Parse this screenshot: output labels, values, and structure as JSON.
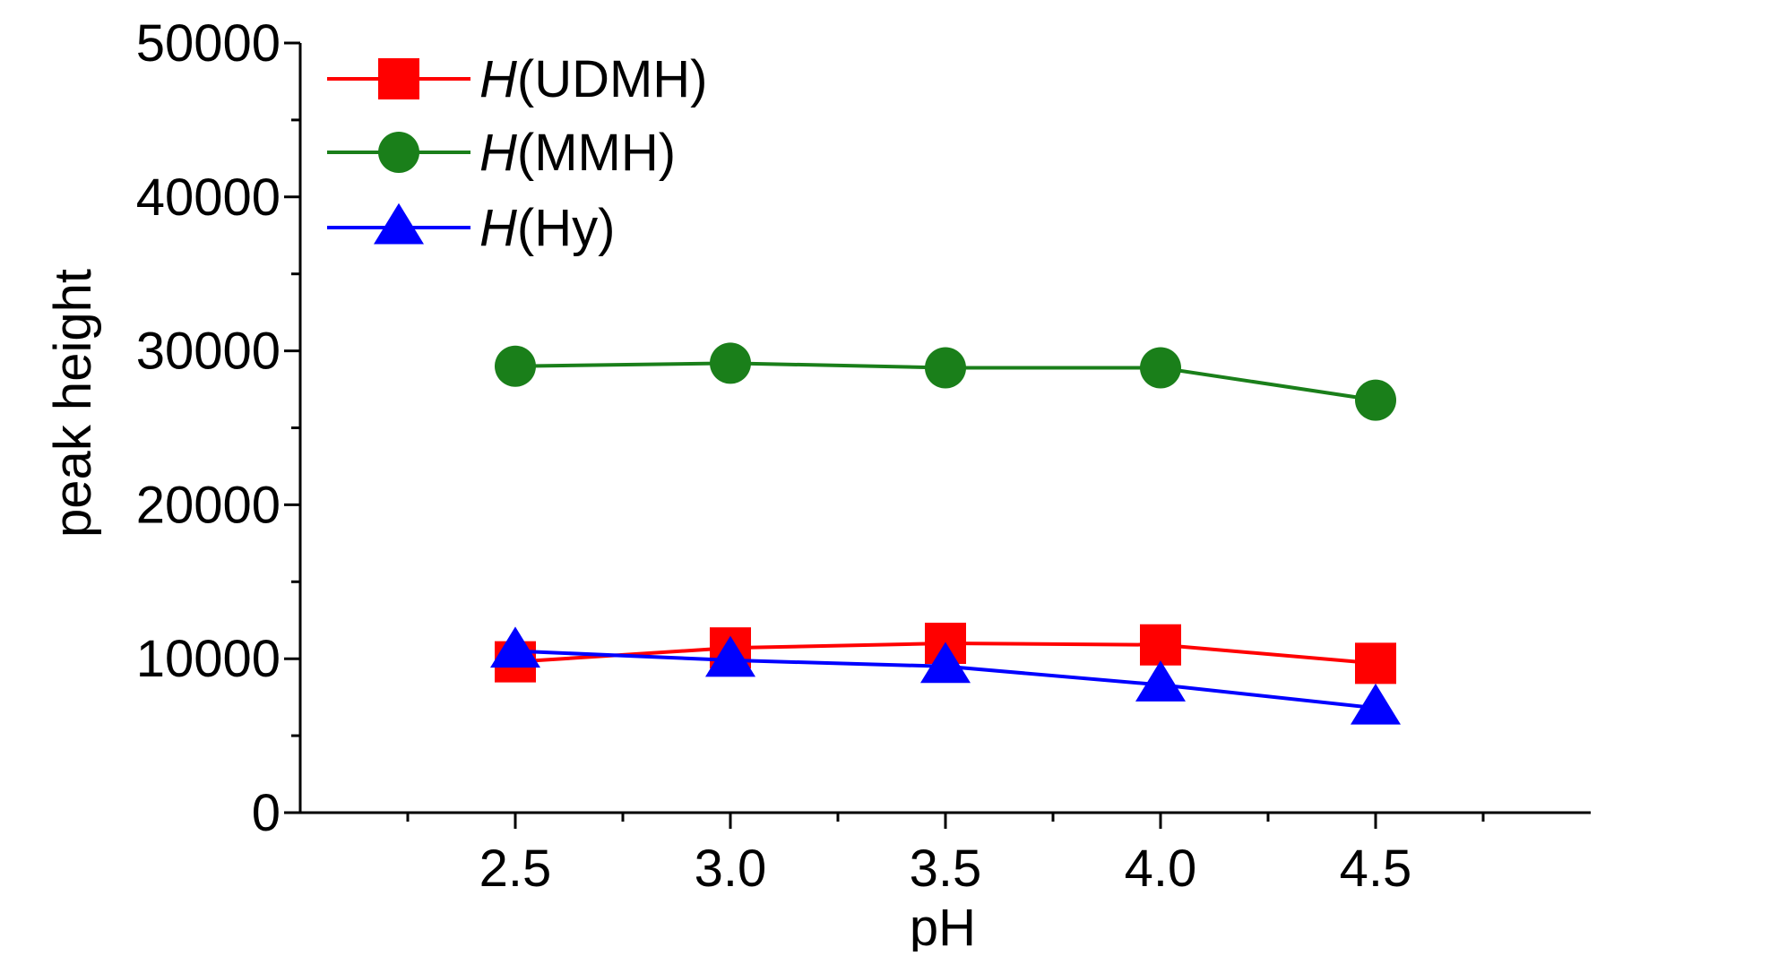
{
  "chart_data": {
    "type": "line",
    "x": [
      2.5,
      3.0,
      3.5,
      4.0,
      4.5
    ],
    "x_tick_labels": [
      "2.5",
      "3.0",
      "3.5",
      "4.0",
      "4.5"
    ],
    "xlim": [
      2.0,
      5.0
    ],
    "ylim": [
      0,
      50000
    ],
    "y_ticks": [
      0,
      10000,
      20000,
      30000,
      40000,
      50000
    ],
    "y_tick_labels": [
      "0",
      "10000",
      "20000",
      "30000",
      "40000",
      "50000"
    ],
    "xlabel": "pH",
    "ylabel": "peak height",
    "title": "",
    "grid": false,
    "legend_placement": "top-left",
    "series": [
      {
        "name_italic": "H",
        "name_rest": "(UDMH)",
        "color": "#ff0000",
        "marker": "square",
        "values": [
          9800,
          10700,
          11000,
          10900,
          9700
        ]
      },
      {
        "name_italic": "H",
        "name_rest": "(MMH)",
        "color": "#1a7f1a",
        "marker": "circle",
        "values": [
          29000,
          29200,
          28900,
          28900,
          26800
        ]
      },
      {
        "name_italic": "H",
        "name_rest": "(Hy)",
        "color": "#0000ff",
        "marker": "triangle",
        "values": [
          10500,
          9900,
          9500,
          8300,
          6800
        ]
      }
    ]
  }
}
